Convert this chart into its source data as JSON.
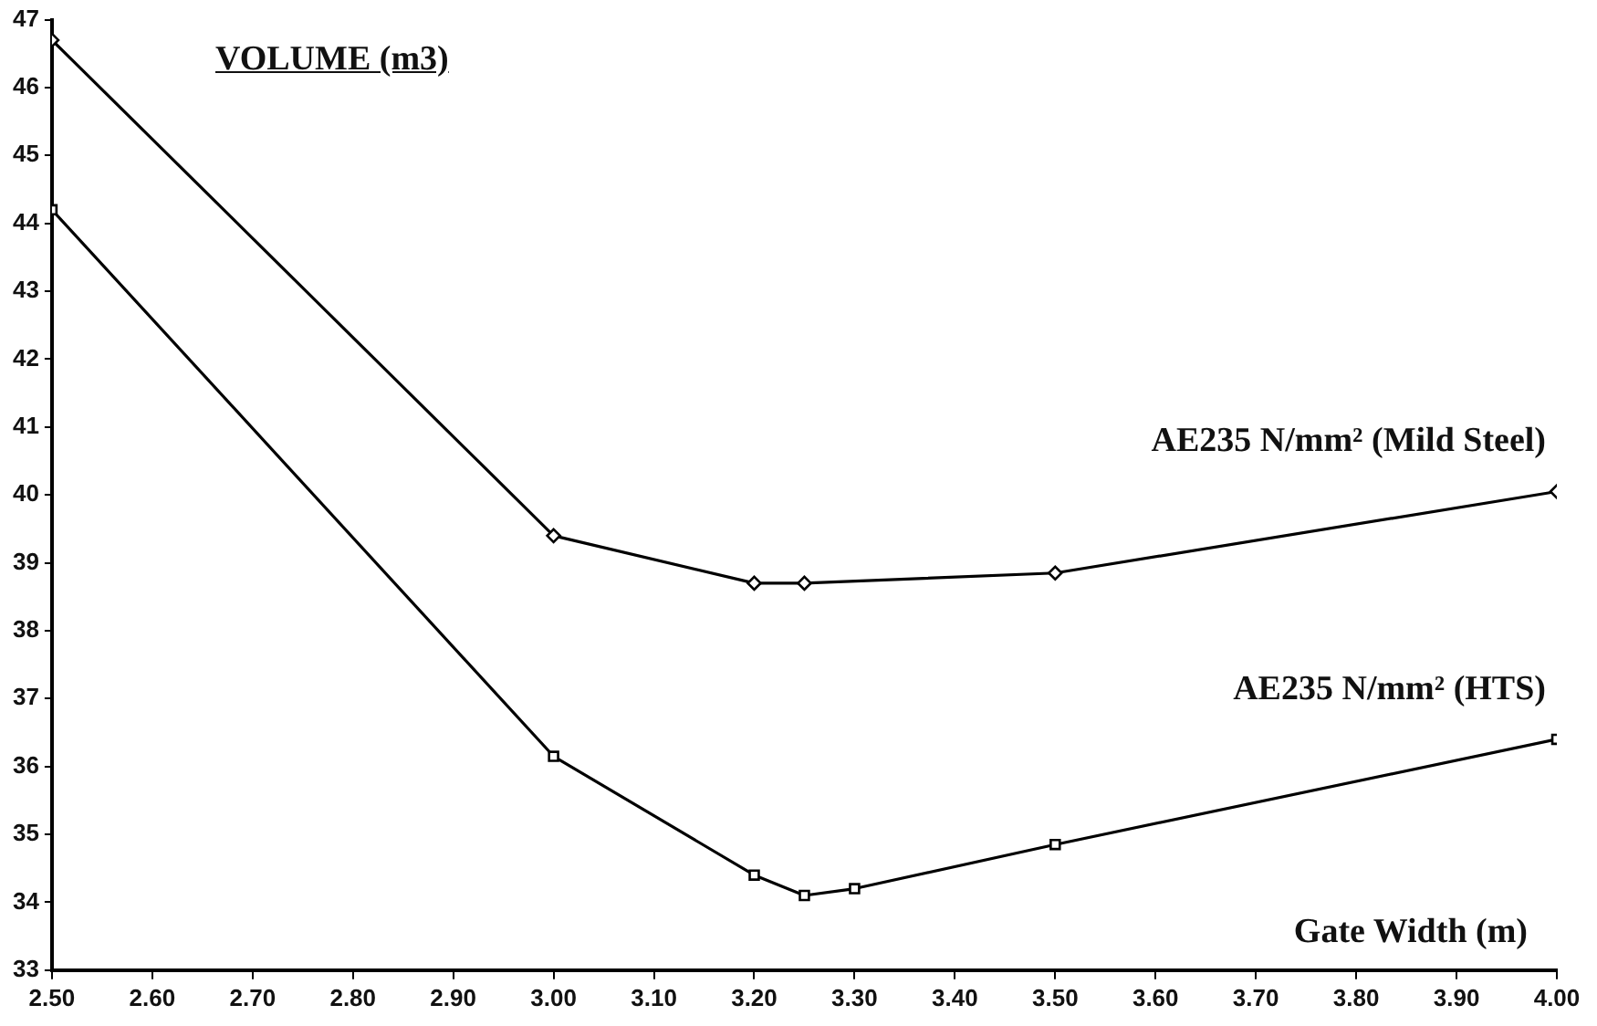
{
  "chart_data": {
    "type": "line",
    "title": "VOLUME (m3)",
    "xlabel": "Gate Width (m)",
    "x": [
      2.5,
      3.0,
      3.2,
      3.25,
      3.5,
      4.0
    ],
    "series": [
      {
        "name": "AE235 N/mm² (Mild Steel)",
        "color": "#000000",
        "marker": "diamond",
        "values": [
          46.7,
          39.4,
          38.7,
          38.7,
          38.85,
          40.05
        ]
      },
      {
        "name": "AE235 N/mm² (HTS)",
        "color": "#000000",
        "marker": "square",
        "x": [
          2.5,
          3.0,
          3.2,
          3.25,
          3.3,
          3.5,
          4.0
        ],
        "values": [
          44.2,
          36.15,
          34.4,
          34.1,
          34.2,
          34.85,
          36.4
        ]
      }
    ],
    "xlim": [
      2.5,
      4.0
    ],
    "xticks": [
      {
        "value": 2.5,
        "label": "2.50"
      },
      {
        "value": 2.6,
        "label": "2.60"
      },
      {
        "value": 2.7,
        "label": "2.70"
      },
      {
        "value": 2.8,
        "label": "2.80"
      },
      {
        "value": 2.9,
        "label": "2.90"
      },
      {
        "value": 3.0,
        "label": "3.00"
      },
      {
        "value": 3.1,
        "label": "3.10"
      },
      {
        "value": 3.2,
        "label": "3.20"
      },
      {
        "value": 3.3,
        "label": "3.30"
      },
      {
        "value": 3.4,
        "label": "3.40"
      },
      {
        "value": 3.5,
        "label": "3.50"
      },
      {
        "value": 3.6,
        "label": "3.60"
      },
      {
        "value": 3.7,
        "label": "3.70"
      },
      {
        "value": 3.8,
        "label": "3.80"
      },
      {
        "value": 3.9,
        "label": "3.90"
      },
      {
        "value": 4.0,
        "label": "4.00"
      }
    ],
    "ylim": [
      33,
      47
    ],
    "yticks": [
      33,
      34,
      35,
      36,
      37,
      38,
      39,
      40,
      41,
      42,
      43,
      44,
      45,
      46,
      47
    ],
    "grid": false,
    "legend": false,
    "line_style": "solid"
  }
}
